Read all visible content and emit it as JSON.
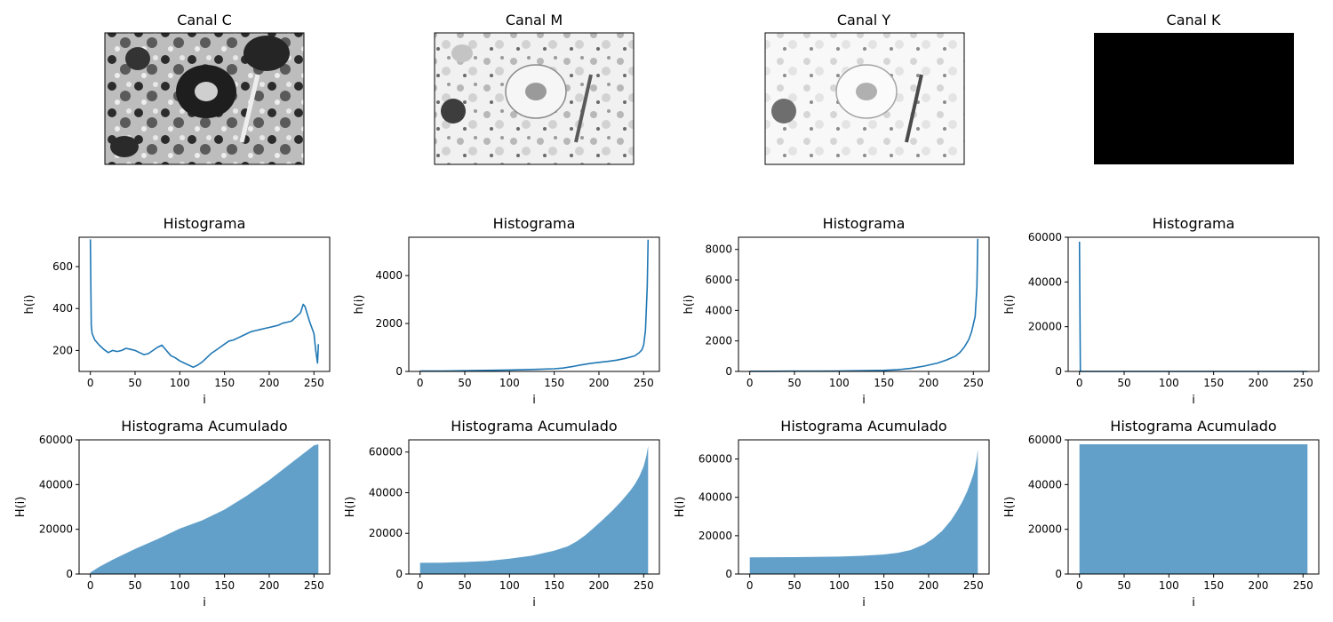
{
  "channels": [
    {
      "title": "Canal C",
      "image_icon": "tulip-photo-grayscale-dark"
    },
    {
      "title": "Canal M",
      "image_icon": "tulip-photo-grayscale-light"
    },
    {
      "title": "Canal Y",
      "image_icon": "tulip-photo-grayscale-lighter"
    },
    {
      "title": "Canal K",
      "image_icon": "solid-black-rect"
    }
  ],
  "colors": {
    "line": "#1f77b4",
    "fill": "#1f77b4",
    "fill_opacity": 0.7,
    "k_image": "#000000"
  },
  "chart_data": [
    {
      "type": "line",
      "title": "Histograma",
      "xlabel": "i",
      "ylabel": "h(i)",
      "xlim": [
        0,
        255
      ],
      "ylim": [
        100,
        740
      ],
      "xticks": [
        0,
        50,
        100,
        150,
        200,
        250
      ],
      "yticks": [
        200,
        400,
        600
      ],
      "series": [
        {
          "x": [
            0,
            1,
            2,
            5,
            10,
            15,
            20,
            25,
            30,
            35,
            40,
            45,
            50,
            55,
            60,
            65,
            70,
            75,
            80,
            85,
            90,
            95,
            100,
            105,
            110,
            115,
            120,
            125,
            130,
            135,
            140,
            145,
            150,
            155,
            160,
            165,
            170,
            175,
            180,
            185,
            190,
            195,
            200,
            205,
            210,
            215,
            220,
            225,
            230,
            235,
            238,
            240,
            245,
            250,
            252,
            254,
            255
          ],
          "y": [
            730,
            320,
            280,
            250,
            225,
            205,
            190,
            200,
            195,
            200,
            210,
            205,
            200,
            190,
            180,
            185,
            200,
            215,
            225,
            200,
            175,
            165,
            150,
            140,
            130,
            120,
            130,
            145,
            165,
            185,
            200,
            215,
            230,
            245,
            250,
            260,
            270,
            280,
            290,
            295,
            300,
            305,
            310,
            315,
            320,
            330,
            335,
            340,
            360,
            380,
            420,
            410,
            340,
            280,
            200,
            140,
            230
          ]
        }
      ]
    },
    {
      "type": "line",
      "title": "Histograma",
      "xlabel": "i",
      "ylabel": "h(i)",
      "xlim": [
        0,
        255
      ],
      "ylim": [
        0,
        5600
      ],
      "xticks": [
        0,
        50,
        100,
        150,
        200,
        250
      ],
      "yticks": [
        0,
        2000,
        4000
      ],
      "series": [
        {
          "x": [
            0,
            25,
            50,
            75,
            100,
            125,
            150,
            160,
            170,
            180,
            190,
            200,
            210,
            220,
            230,
            240,
            245,
            248,
            250,
            252,
            254,
            255
          ],
          "y": [
            15,
            20,
            30,
            45,
            60,
            80,
            110,
            140,
            200,
            270,
            330,
            380,
            420,
            470,
            550,
            650,
            780,
            900,
            1100,
            1700,
            3500,
            5500
          ]
        }
      ]
    },
    {
      "type": "line",
      "title": "Histograma",
      "xlabel": "i",
      "ylabel": "h(i)",
      "xlim": [
        0,
        255
      ],
      "ylim": [
        0,
        8800
      ],
      "xticks": [
        0,
        50,
        100,
        150,
        200,
        250
      ],
      "yticks": [
        0,
        2000,
        4000,
        6000,
        8000
      ],
      "series": [
        {
          "x": [
            0,
            25,
            50,
            75,
            100,
            125,
            150,
            165,
            180,
            195,
            210,
            220,
            230,
            235,
            240,
            245,
            248,
            250,
            252,
            254,
            255
          ],
          "y": [
            10,
            10,
            15,
            20,
            30,
            45,
            70,
            110,
            200,
            350,
            550,
            750,
            1000,
            1250,
            1600,
            2100,
            2600,
            3100,
            3600,
            5500,
            8700
          ]
        }
      ]
    },
    {
      "type": "line",
      "title": "Histograma",
      "xlabel": "i",
      "ylabel": "h(i)",
      "xlim": [
        0,
        255
      ],
      "ylim": [
        0,
        60000
      ],
      "xticks": [
        0,
        50,
        100,
        150,
        200,
        250
      ],
      "yticks": [
        0,
        20000,
        40000,
        60000
      ],
      "series": [
        {
          "x": [
            0,
            1,
            255
          ],
          "y": [
            58000,
            0,
            0
          ]
        }
      ]
    },
    {
      "type": "area",
      "title": "Histograma Acumulado",
      "xlabel": "i",
      "ylabel": "H(i)",
      "xlim": [
        0,
        255
      ],
      "ylim": [
        0,
        60000
      ],
      "xticks": [
        0,
        50,
        100,
        150,
        200,
        250
      ],
      "yticks": [
        0,
        20000,
        40000,
        60000
      ],
      "series": [
        {
          "x": [
            0,
            10,
            25,
            50,
            75,
            100,
            125,
            150,
            175,
            200,
            225,
            250,
            255
          ],
          "y": [
            730,
            3200,
            6400,
            11200,
            15600,
            20300,
            24000,
            28800,
            35000,
            42000,
            49800,
            57500,
            58000
          ]
        }
      ]
    },
    {
      "type": "area",
      "title": "Histograma Acumulado",
      "xlabel": "i",
      "ylabel": "H(i)",
      "xlim": [
        0,
        255
      ],
      "ylim": [
        0,
        66000
      ],
      "xticks": [
        0,
        50,
        100,
        150,
        200,
        250
      ],
      "yticks": [
        0,
        20000,
        40000,
        60000
      ],
      "series": [
        {
          "x": [
            0,
            25,
            50,
            75,
            100,
            125,
            150,
            165,
            175,
            185,
            195,
            205,
            215,
            225,
            235,
            240,
            245,
            250,
            253,
            255
          ],
          "y": [
            5500,
            5600,
            5900,
            6400,
            7500,
            9000,
            11500,
            13600,
            16000,
            19200,
            23000,
            27000,
            31200,
            35800,
            41000,
            44000,
            47800,
            53000,
            58000,
            63000
          ]
        }
      ]
    },
    {
      "type": "area",
      "title": "Histograma Acumulado",
      "xlabel": "i",
      "ylabel": "H(i)",
      "xlim": [
        0,
        255
      ],
      "ylim": [
        0,
        70000
      ],
      "xticks": [
        0,
        50,
        100,
        150,
        200,
        250
      ],
      "yticks": [
        0,
        20000,
        40000,
        60000
      ],
      "series": [
        {
          "x": [
            0,
            50,
            100,
            125,
            150,
            165,
            180,
            195,
            205,
            215,
            225,
            232,
            238,
            243,
            247,
            250,
            252,
            254,
            255
          ],
          "y": [
            8700,
            8800,
            9100,
            9500,
            10200,
            11000,
            12500,
            15500,
            18500,
            22500,
            28000,
            33000,
            38000,
            43000,
            48000,
            52000,
            56000,
            61000,
            65000
          ]
        }
      ]
    },
    {
      "type": "area",
      "title": "Histograma Acumulado",
      "xlabel": "i",
      "ylabel": "H(i)",
      "xlim": [
        0,
        255
      ],
      "ylim": [
        0,
        60000
      ],
      "xticks": [
        0,
        50,
        100,
        150,
        200,
        250
      ],
      "yticks": [
        0,
        20000,
        40000,
        60000
      ],
      "series": [
        {
          "x": [
            0,
            255
          ],
          "y": [
            58000,
            58000
          ]
        }
      ]
    }
  ]
}
